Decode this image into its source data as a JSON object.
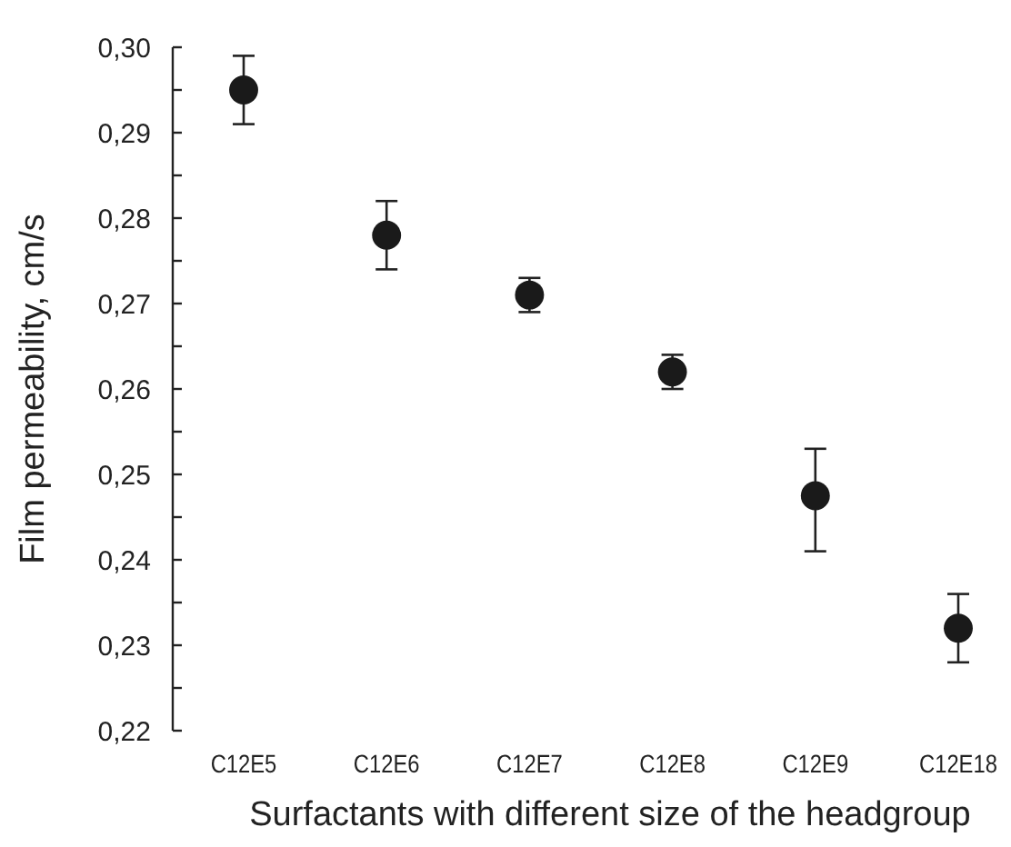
{
  "chart_data": {
    "type": "scatter",
    "xlabel": "Surfactants with different  size of the headgroup",
    "ylabel": "Film permeability, cm/s",
    "categories": [
      "C12E5",
      "C12E6",
      "C12E7",
      "C12E8",
      "C12E9",
      "C12E18"
    ],
    "series": [
      {
        "color": "#1a1a1a",
        "values": [
          0.295,
          0.278,
          0.271,
          0.262,
          0.2475,
          0.232
        ],
        "errors": [
          0.004,
          0.004,
          0.002,
          0.002,
          [
            0.241,
            0.253
          ],
          0.004
        ]
      }
    ],
    "ylim": [
      0.22,
      0.3
    ],
    "yticks": [
      {
        "value": 0.22,
        "label": "0,22"
      },
      {
        "value": 0.225,
        "label": null
      },
      {
        "value": 0.23,
        "label": "0,23"
      },
      {
        "value": 0.235,
        "label": null
      },
      {
        "value": 0.24,
        "label": "0,24"
      },
      {
        "value": 0.245,
        "label": null
      },
      {
        "value": 0.25,
        "label": "0,25"
      },
      {
        "value": 0.255,
        "label": null
      },
      {
        "value": 0.26,
        "label": "0,26"
      },
      {
        "value": 0.265,
        "label": null
      },
      {
        "value": 0.27,
        "label": "0,27"
      },
      {
        "value": 0.275,
        "label": null
      },
      {
        "value": 0.28,
        "label": "0,28"
      },
      {
        "value": 0.285,
        "label": null
      },
      {
        "value": 0.29,
        "label": "0,29"
      },
      {
        "value": 0.295,
        "label": null
      },
      {
        "value": 0.3,
        "label": "0,30"
      }
    ],
    "marker": "circle",
    "grid": false
  }
}
